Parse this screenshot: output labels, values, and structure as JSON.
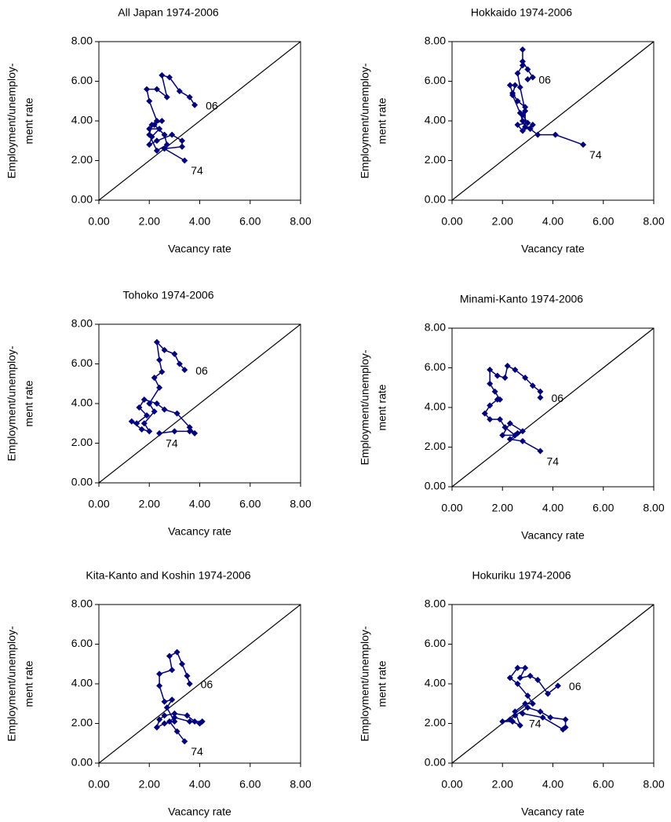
{
  "chart_data": [
    {
      "type": "line",
      "title": "All Japan 1974-2006",
      "x_label": "Vacancy rate",
      "y_label": [
        "Employment/unemploy-",
        "ment rate"
      ],
      "annotations": [
        "06",
        "74"
      ],
      "xlim": [
        0,
        8
      ],
      "ylim": [
        0,
        8
      ],
      "xticks": [
        {
          "value": 0,
          "label": "0.00"
        },
        {
          "value": 2,
          "label": "2.00"
        },
        {
          "value": 4,
          "label": "4.00"
        },
        {
          "value": 6,
          "label": "6.00"
        },
        {
          "value": 8,
          "label": "8.00"
        }
      ],
      "yticks": [
        {
          "value": 0,
          "label": "0.00"
        },
        {
          "value": 2,
          "label": "2.00"
        },
        {
          "value": 4,
          "label": "4.00"
        },
        {
          "value": 6,
          "label": "6.00"
        },
        {
          "value": 8,
          "label": "8.00"
        }
      ],
      "series": [
        {
          "color": "#000080",
          "x": [
            3.4,
            2.6,
            3.3,
            3.3,
            2.9,
            2.3,
            2.0,
            2.1,
            2.4,
            2.0,
            2.2,
            2.6,
            2.7,
            2.3,
            2.0,
            2.1,
            2.5,
            2.3,
            2.0,
            1.9,
            2.3,
            2.7,
            2.5,
            2.8,
            3.2,
            3.6,
            3.8
          ],
          "values": [
            2.0,
            2.6,
            2.7,
            3.0,
            3.3,
            3.0,
            2.8,
            3.2,
            3.6,
            3.6,
            3.8,
            3.3,
            2.8,
            2.5,
            3.3,
            3.8,
            4.0,
            4.0,
            5.0,
            5.6,
            5.6,
            5.2,
            6.3,
            6.2,
            5.5,
            5.2,
            4.8
          ]
        }
      ]
    },
    {
      "type": "line",
      "title": "Hokkaido 1974-2006",
      "x_label": "Vacancy rate",
      "y_label": [
        "Employment/unemploy-",
        "ment rate"
      ],
      "annotations": [
        "06",
        "74"
      ],
      "xlim": [
        0,
        8
      ],
      "ylim": [
        0,
        8
      ],
      "xticks": [
        {
          "value": 0,
          "label": "0.00"
        },
        {
          "value": 2,
          "label": "2.00"
        },
        {
          "value": 4,
          "label": "4.00"
        },
        {
          "value": 6,
          "label": "6.00"
        },
        {
          "value": 8,
          "label": "8.00"
        }
      ],
      "yticks": [
        {
          "value": 0,
          "label": "0.00"
        },
        {
          "value": 2,
          "label": "2.00"
        },
        {
          "value": 4,
          "label": "4.00"
        },
        {
          "value": 6,
          "label": "6.00"
        },
        {
          "value": 8,
          "label": "8.00"
        }
      ],
      "series": [
        {
          "color": "#000080",
          "x": [
            5.2,
            4.1,
            3.4,
            3.1,
            3.2,
            2.8,
            2.6,
            3.0,
            2.8,
            2.9,
            2.6,
            2.4,
            2.3,
            2.5,
            2.4,
            2.7,
            2.8,
            2.9,
            2.9,
            2.7,
            2.6,
            2.8,
            2.8,
            2.8,
            3.0,
            3.2,
            3.0
          ],
          "values": [
            2.8,
            3.3,
            3.3,
            3.6,
            3.8,
            3.5,
            3.8,
            3.9,
            4.3,
            4.7,
            5.0,
            5.4,
            5.8,
            5.8,
            5.3,
            4.4,
            4.0,
            3.7,
            4.5,
            5.7,
            6.4,
            6.8,
            7.6,
            7.0,
            6.6,
            6.2,
            6.1
          ]
        }
      ]
    },
    {
      "type": "line",
      "title": "Tohoko 1974-2006",
      "x_label": "Vacancy rate",
      "y_label": [
        "Employment/unemploy-",
        "ment rate"
      ],
      "annotations": [
        "06",
        "74"
      ],
      "xlim": [
        0,
        8
      ],
      "ylim": [
        0,
        8
      ],
      "xticks": [
        {
          "value": 0,
          "label": "0.00"
        },
        {
          "value": 2,
          "label": "2.00"
        },
        {
          "value": 4,
          "label": "4.00"
        },
        {
          "value": 6,
          "label": "6.00"
        },
        {
          "value": 8,
          "label": "8.00"
        }
      ],
      "yticks": [
        {
          "value": 0,
          "label": "0.00"
        },
        {
          "value": 2,
          "label": "2.00"
        },
        {
          "value": 4,
          "label": "4.00"
        },
        {
          "value": 6,
          "label": "6.00"
        },
        {
          "value": 8,
          "label": "8.00"
        }
      ],
      "series": [
        {
          "color": "#000080",
          "x": [
            2.4,
            3.0,
            3.6,
            3.8,
            3.6,
            3.1,
            2.6,
            2.3,
            1.8,
            1.6,
            1.9,
            1.5,
            1.3,
            1.7,
            2.0,
            1.8,
            2.2,
            2.0,
            2.4,
            2.2,
            2.5,
            2.4,
            2.3,
            2.6,
            3.0,
            3.2,
            3.4
          ],
          "values": [
            2.5,
            2.6,
            2.6,
            2.5,
            2.8,
            3.5,
            3.7,
            4.0,
            4.2,
            3.8,
            3.4,
            3.0,
            3.1,
            2.7,
            2.6,
            3.0,
            3.6,
            4.0,
            4.8,
            5.3,
            5.6,
            6.2,
            7.1,
            6.7,
            6.5,
            6.0,
            5.7
          ]
        }
      ]
    },
    {
      "type": "line",
      "title": "Minami-Kanto 1974-2006",
      "x_label": "Vacancy rate",
      "y_label": [
        "Employment/unemploy-",
        "ment rate"
      ],
      "annotations": [
        "06",
        "74"
      ],
      "xlim": [
        0,
        8
      ],
      "ylim": [
        0,
        8
      ],
      "xticks": [
        {
          "value": 0,
          "label": "0.00"
        },
        {
          "value": 2,
          "label": "2.00"
        },
        {
          "value": 4,
          "label": "4.00"
        },
        {
          "value": 6,
          "label": "6.00"
        },
        {
          "value": 8,
          "label": "8.00"
        }
      ],
      "yticks": [
        {
          "value": 0,
          "label": "0.00"
        },
        {
          "value": 2,
          "label": "2.00"
        },
        {
          "value": 4,
          "label": "4.00"
        },
        {
          "value": 6,
          "label": "6.00"
        },
        {
          "value": 8,
          "label": "8.00"
        }
      ],
      "series": [
        {
          "color": "#000080",
          "x": [
            3.5,
            2.8,
            2.3,
            2.6,
            2.8,
            2.3,
            2.0,
            2.5,
            2.1,
            1.9,
            1.5,
            1.3,
            1.5,
            1.8,
            1.9,
            1.7,
            1.5,
            1.5,
            1.8,
            2.1,
            2.2,
            2.5,
            2.9,
            3.2,
            3.5,
            3.5
          ],
          "values": [
            1.8,
            2.3,
            2.4,
            2.7,
            2.8,
            3.2,
            2.6,
            2.6,
            3.0,
            3.4,
            3.4,
            3.7,
            4.1,
            4.4,
            4.4,
            4.8,
            5.2,
            5.9,
            5.6,
            5.5,
            6.1,
            5.9,
            5.5,
            5.1,
            4.8,
            4.5
          ]
        }
      ]
    },
    {
      "type": "line",
      "title": "Kita-Kanto and Koshin 1974-2006",
      "x_label": "Vacancy rate",
      "y_label": [
        "Employment/unemploy-",
        "ment rate"
      ],
      "annotations": [
        "06",
        "74"
      ],
      "xlim": [
        0,
        8
      ],
      "ylim": [
        0,
        8
      ],
      "xticks": [
        {
          "value": 0,
          "label": "0.00"
        },
        {
          "value": 2,
          "label": "2.00"
        },
        {
          "value": 4,
          "label": "4.00"
        },
        {
          "value": 6,
          "label": "6.00"
        },
        {
          "value": 8,
          "label": "8.00"
        }
      ],
      "yticks": [
        {
          "value": 0,
          "label": "0.00"
        },
        {
          "value": 2,
          "label": "2.00"
        },
        {
          "value": 4,
          "label": "4.00"
        },
        {
          "value": 6,
          "label": "6.00"
        },
        {
          "value": 8,
          "label": "8.00"
        }
      ],
      "series": [
        {
          "color": "#000080",
          "x": [
            3.4,
            3.1,
            2.8,
            3.0,
            3.6,
            4.0,
            4.1,
            3.8,
            3.5,
            3.0,
            2.6,
            2.4,
            2.3,
            2.6,
            3.0,
            2.7,
            2.9,
            2.6,
            2.4,
            2.4,
            2.9,
            2.8,
            3.1,
            3.3,
            3.5,
            3.6
          ],
          "values": [
            1.1,
            1.6,
            2.1,
            2.3,
            2.1,
            2.0,
            2.1,
            2.1,
            2.4,
            2.5,
            2.4,
            2.2,
            1.8,
            2.0,
            2.1,
            2.8,
            3.2,
            3.1,
            3.9,
            4.5,
            4.7,
            5.4,
            5.6,
            5.0,
            4.4,
            4.0
          ]
        }
      ]
    },
    {
      "type": "line",
      "title": "Hokuriku 1974-2006",
      "x_label": "Vacancy rate",
      "y_label": [
        "Employment/unemploy-",
        "ment rate"
      ],
      "annotations": [
        "06",
        "74"
      ],
      "xlim": [
        0,
        8
      ],
      "ylim": [
        0,
        8
      ],
      "xticks": [
        {
          "value": 0,
          "label": "0.00"
        },
        {
          "value": 2,
          "label": "2.00"
        },
        {
          "value": 4,
          "label": "4.00"
        },
        {
          "value": 6,
          "label": "6.00"
        },
        {
          "value": 8,
          "label": "8.00"
        }
      ],
      "yticks": [
        {
          "value": 0,
          "label": "0.00"
        },
        {
          "value": 2,
          "label": "2.00"
        },
        {
          "value": 4,
          "label": "4.00"
        },
        {
          "value": 6,
          "label": "6.00"
        },
        {
          "value": 8,
          "label": "8.00"
        }
      ],
      "series": [
        {
          "color": "#000080",
          "x": [
            2.8,
            3.6,
            4.4,
            4.5,
            4.5,
            3.9,
            3.5,
            3.0,
            2.5,
            2.3,
            2.0,
            2.4,
            2.7,
            2.5,
            2.9,
            3.2,
            3.0,
            2.6,
            2.3,
            2.6,
            2.9,
            2.7,
            3.1,
            3.4,
            3.8,
            4.2
          ],
          "values": [
            2.5,
            2.3,
            1.7,
            1.8,
            2.2,
            2.3,
            2.6,
            2.8,
            2.4,
            2.2,
            2.1,
            2.1,
            1.9,
            2.6,
            3.0,
            3.0,
            3.4,
            4.0,
            4.3,
            4.8,
            4.8,
            4.3,
            4.4,
            4.2,
            3.5,
            3.9
          ]
        }
      ]
    }
  ]
}
